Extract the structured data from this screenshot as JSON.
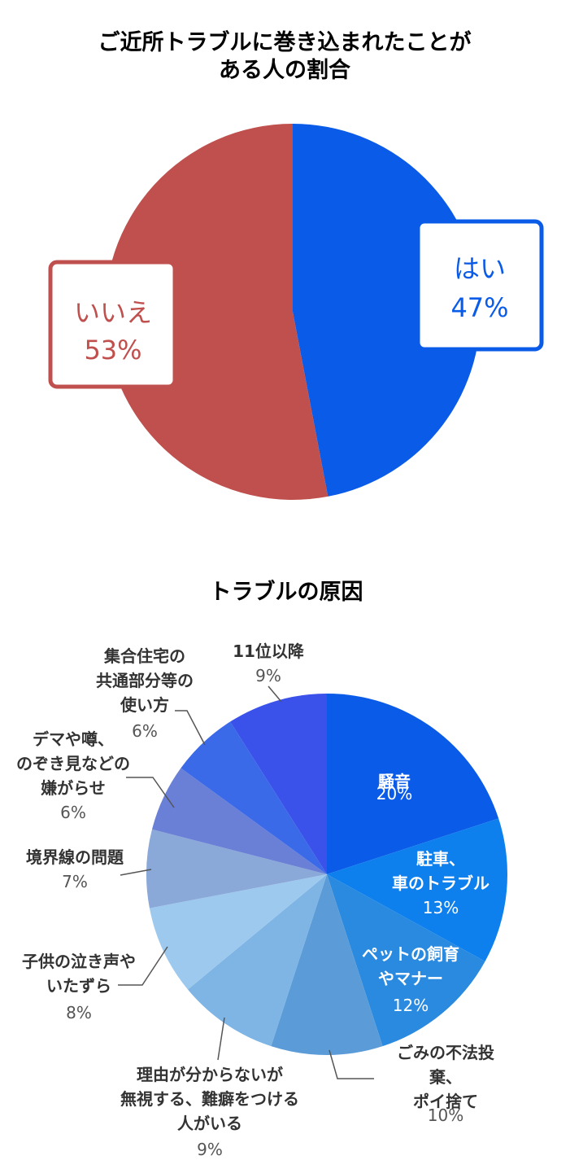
{
  "chart_data": [
    {
      "type": "pie",
      "title": "ご近所トラブルに巻き込まれたことが\nある人の割合",
      "categories": [
        "はい",
        "いいえ"
      ],
      "values": [
        47,
        53
      ],
      "value_labels": [
        "47%",
        "53%"
      ],
      "colors": [
        "#0a5be8",
        "#c0504d"
      ]
    },
    {
      "type": "pie",
      "title": "トラブルの原因",
      "categories": [
        "騒音",
        "駐車、\n車のトラブル",
        "ペットの飼育\nやマナー",
        "ごみの不法投棄、\nポイ捨て",
        "理由が分からないが\n無視する、難癖をつける\n人がいる",
        "子供の泣き声や\nいたずら",
        "境界線の問題",
        "デマや噂、\nのぞき見などの\n嫌がらせ",
        "集合住宅の\n共通部分等の\n使い方",
        "11位以降"
      ],
      "values": [
        20,
        13,
        12,
        10,
        9,
        8,
        7,
        6,
        6,
        9
      ],
      "value_labels": [
        "20%",
        "13%",
        "12%",
        "10%",
        "9%",
        "8%",
        "7%",
        "6%",
        "6%",
        "9%"
      ],
      "colors": [
        "#0a5be8",
        "#0d80ee",
        "#2a8ae0",
        "#5b9cd8",
        "#7fb5e4",
        "#9dc9ee",
        "#8aa8d8",
        "#6a7fd6",
        "#3a6ae8",
        "#3a52ea"
      ]
    }
  ]
}
